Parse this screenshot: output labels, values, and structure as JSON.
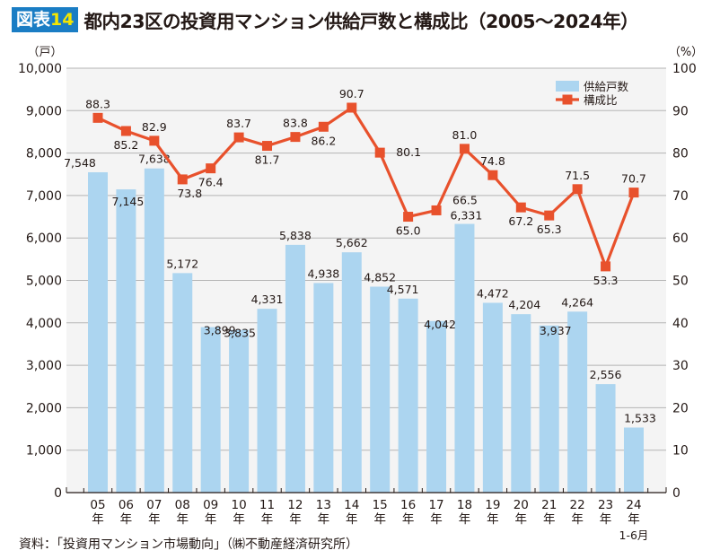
{
  "header": {
    "badge_prefix": "図表",
    "badge_number": "14",
    "title": "都内23区の投資用マンション供給戸数と構成比（2005～2024年）"
  },
  "source": "資料：「投資用マンション市場動向」（㈱不動産経済研究所）",
  "chart_data": {
    "type": "bar+line",
    "title": "都内23区の投資用マンション供給戸数と構成比（2005～2024年）",
    "categories": [
      "05",
      "06",
      "07",
      "08",
      "09",
      "10",
      "11",
      "12",
      "13",
      "14",
      "15",
      "16",
      "17",
      "18",
      "19",
      "20",
      "21",
      "22",
      "23",
      "24"
    ],
    "category_suffix": "年",
    "last_category_note": "1-6月",
    "left_axis": {
      "unit_label": "（戸）",
      "range": [
        0,
        10000
      ],
      "ticks": [
        "0",
        "1,000",
        "2,000",
        "3,000",
        "4,000",
        "5,000",
        "6,000",
        "7,000",
        "8,000",
        "9,000",
        "10,000"
      ]
    },
    "right_axis": {
      "unit_label": "（%）",
      "range": [
        0,
        100
      ],
      "ticks": [
        "0",
        "10",
        "20",
        "30",
        "40",
        "50",
        "60",
        "70",
        "80",
        "90",
        "100"
      ]
    },
    "grid": true,
    "legend_position": "top-right",
    "series": [
      {
        "name": "供給戸数",
        "type": "bar",
        "axis": "left",
        "color": "#acd5f0",
        "values": [
          7548,
          7145,
          7638,
          5172,
          3899,
          3835,
          4331,
          5838,
          4938,
          5662,
          4852,
          4571,
          4042,
          6331,
          4472,
          4204,
          3937,
          4264,
          2556,
          1533
        ],
        "labels": [
          "7,548",
          "7,145",
          "7,638",
          "5,172",
          "3,899",
          "3,835",
          "4,331",
          "5,838",
          "4,938",
          "5,662",
          "4,852",
          "4,571",
          "4,042",
          "6,331",
          "4,472",
          "4,204",
          "3,937",
          "4,264",
          "2,556",
          "1,533"
        ]
      },
      {
        "name": "構成比",
        "type": "line",
        "axis": "right",
        "color": "#e8512c",
        "values": [
          88.3,
          85.2,
          82.9,
          73.8,
          76.4,
          83.7,
          81.7,
          83.8,
          86.2,
          90.7,
          80.1,
          65.0,
          66.5,
          81.0,
          74.8,
          67.2,
          65.3,
          71.5,
          53.3,
          70.7
        ],
        "labels": [
          "88.3",
          "85.2",
          "82.9",
          "73.8",
          "76.4",
          "83.7",
          "81.7",
          "83.8",
          "86.2",
          "90.7",
          "80.1",
          "65.0",
          "66.5",
          "81.0",
          "74.8",
          "67.2",
          "65.3",
          "71.5",
          "53.3",
          "70.7"
        ]
      }
    ]
  }
}
